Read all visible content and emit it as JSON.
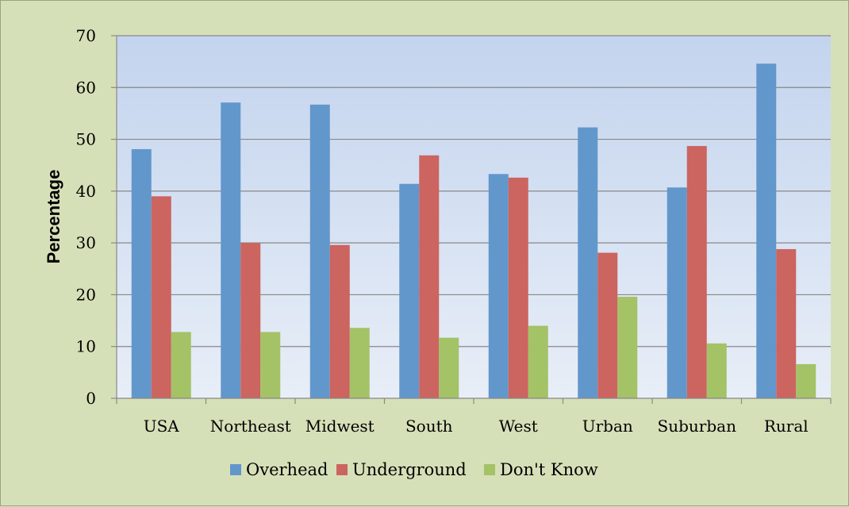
{
  "chart_data": {
    "type": "bar",
    "title": "",
    "xlabel": "",
    "ylabel": "Percentage",
    "ylim": [
      0,
      70
    ],
    "yticks": [
      0,
      10,
      20,
      30,
      40,
      50,
      60,
      70
    ],
    "grid": true,
    "legend_position": "bottom",
    "categories": [
      "USA",
      "Northeast",
      "Midwest",
      "South",
      "West",
      "Urban",
      "Suburban",
      "Rural"
    ],
    "series": [
      {
        "name": "Overhead",
        "color": "#6297cc",
        "values": [
          48.1,
          57.1,
          56.7,
          41.4,
          43.3,
          52.3,
          40.7,
          64.6
        ]
      },
      {
        "name": "Underground",
        "color": "#cc6460",
        "values": [
          39.0,
          30.0,
          29.6,
          46.9,
          42.6,
          28.1,
          48.7,
          28.8
        ]
      },
      {
        "name": "Don't Know",
        "color": "#a4c266",
        "values": [
          12.8,
          12.8,
          13.6,
          11.7,
          14.0,
          19.6,
          10.6,
          6.6
        ]
      }
    ]
  }
}
